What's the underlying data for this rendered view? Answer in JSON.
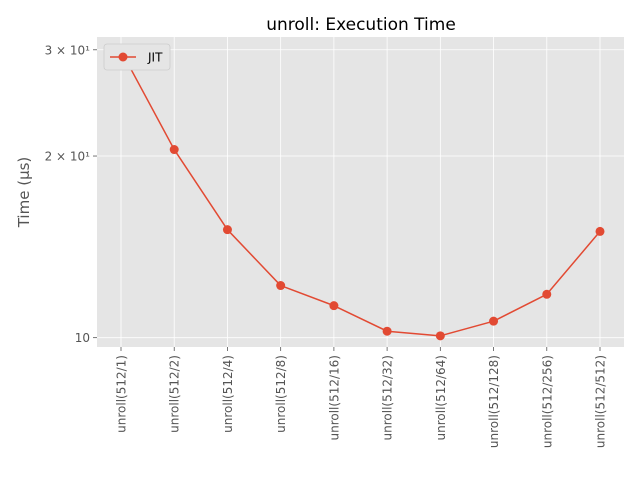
{
  "chart_data": {
    "type": "line",
    "title": "unroll: Execution Time",
    "xlabel": "",
    "ylabel": "Time (µs)",
    "yscale": "log",
    "ylim": [
      9.65,
      31.5
    ],
    "categories": [
      "unroll(512/1)",
      "unroll(512/2)",
      "unroll(512/4)",
      "unroll(512/8)",
      "unroll(512/16)",
      "unroll(512/32)",
      "unroll(512/64)",
      "unroll(512/128)",
      "unroll(512/256)",
      "unroll(512/512)"
    ],
    "series": [
      {
        "name": "JIT",
        "values": [
          29.9,
          20.5,
          15.1,
          12.2,
          11.3,
          10.25,
          10.07,
          10.65,
          11.8,
          15.0
        ]
      }
    ],
    "y_ticks": [
      {
        "value": 10,
        "label": "10"
      },
      {
        "value": 20,
        "label": "2 × 10¹"
      },
      {
        "value": 30,
        "label": "3 × 10¹"
      }
    ],
    "grid": true,
    "legend_position": "top-left",
    "colors": {
      "background": "#e5e5e5",
      "grid": "#ffffff",
      "line": "#e24a33",
      "text": "#555555"
    }
  }
}
